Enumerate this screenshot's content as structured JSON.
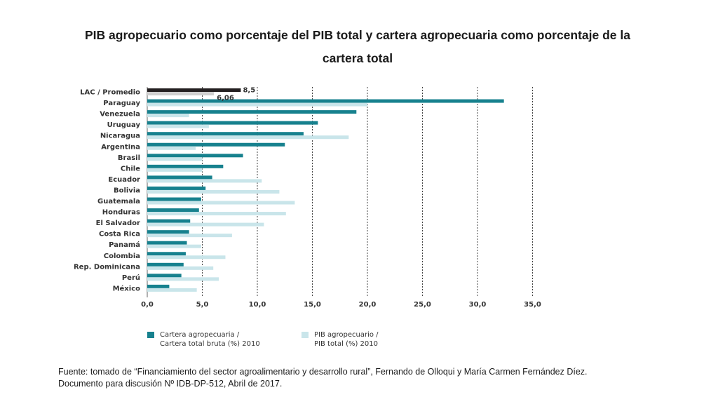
{
  "title": "PIB agropecuario como porcentaje del PIB total y cartera agropecuaria como porcentaje de la cartera total",
  "source_line1": "Fuente: tomado de “Financiamiento del sector agroalimentario y desarrollo rural”, Fernando de Olloqui y María Carmen Fernández Díez.",
  "source_line2": "Documento para discusión Nº IDB-DP-512, Abril de 2017.",
  "colors": {
    "cartera": "#17818e",
    "pib": "#c9e5ea",
    "lac_cartera": "#231f20",
    "lac_pib": "#cfcfcf"
  },
  "chart_data": {
    "type": "bar",
    "orientation": "horizontal",
    "categories": [
      "LAC / Promedio",
      "Paraguay",
      "Venezuela",
      "Uruguay",
      "Nicaragua",
      "Argentina",
      "Brasil",
      "Chile",
      "Ecuador",
      "Bolivia",
      "Guatemala",
      "Honduras",
      "El Salvador",
      "Costa Rica",
      "Panamá",
      "Colombia",
      "Rep. Dominicana",
      "Perú",
      "México"
    ],
    "series": [
      {
        "name": "Cartera agropecuaria / Cartera total bruta (%) 2010",
        "values": [
          8.5,
          32.4,
          19.0,
          15.5,
          14.2,
          12.5,
          8.7,
          6.9,
          5.9,
          5.3,
          4.9,
          4.7,
          3.9,
          3.8,
          3.6,
          3.5,
          3.3,
          3.1,
          2.0
        ]
      },
      {
        "name": "PIB agropecuario / PIB total (%) 2010",
        "values": [
          6.06,
          20.0,
          3.8,
          5.6,
          18.3,
          4.4,
          5.0,
          5.0,
          10.4,
          12.0,
          13.4,
          12.6,
          10.6,
          7.7,
          4.9,
          7.1,
          6.0,
          6.5,
          4.5
        ]
      }
    ],
    "data_labels": [
      "8,5",
      "6,06"
    ],
    "x_ticks": [
      "0,0",
      "5,0",
      "10,0",
      "15,0",
      "20,0",
      "25,0",
      "30,0",
      "35,0"
    ],
    "xlim": [
      0,
      35
    ],
    "grid": "dashed vertical at major ticks",
    "legend_position": "bottom",
    "legend": [
      {
        "line1": "Cartera agropecuaria /",
        "line2": "Cartera total bruta (%) 2010"
      },
      {
        "line1": "PIB agropecuario /",
        "line2": "PIB total (%) 2010"
      }
    ]
  }
}
